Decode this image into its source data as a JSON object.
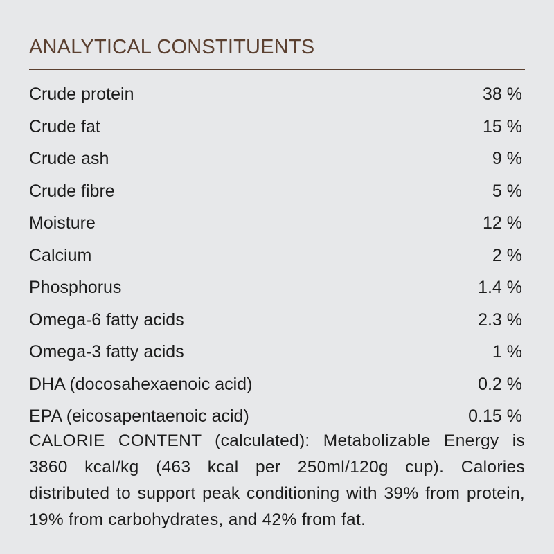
{
  "header": {
    "title": "ANALYTICAL CONSTITUENTS"
  },
  "table": {
    "rows": [
      [
        "Crude protein",
        "38 %"
      ],
      [
        "Crude fat",
        "15 %"
      ],
      [
        "Crude ash",
        "9 %"
      ],
      [
        "Crude fibre",
        "5 %"
      ],
      [
        "Moisture",
        "12 %"
      ],
      [
        "Calcium",
        "2 %"
      ],
      [
        "Phosphorus",
        "1.4 %"
      ],
      [
        "Omega-6 fatty acids",
        "2.3 %"
      ],
      [
        "Omega-3 fatty acids",
        "1 %"
      ],
      [
        "DHA (docosahexaenoic acid)",
        "0.2 %"
      ],
      [
        "EPA (eicosapentaenoic acid)",
        "0.15 %"
      ]
    ]
  },
  "note": {
    "text": "CALORIE CONTENT (calculated): Metabolizable Energy is 3860 kcal/kg (463 kcal per 250ml/120g cup). Calories distributed to support peak conditioning with 39% from protein, 19% from carbohydrates, and 42% from fat."
  }
}
